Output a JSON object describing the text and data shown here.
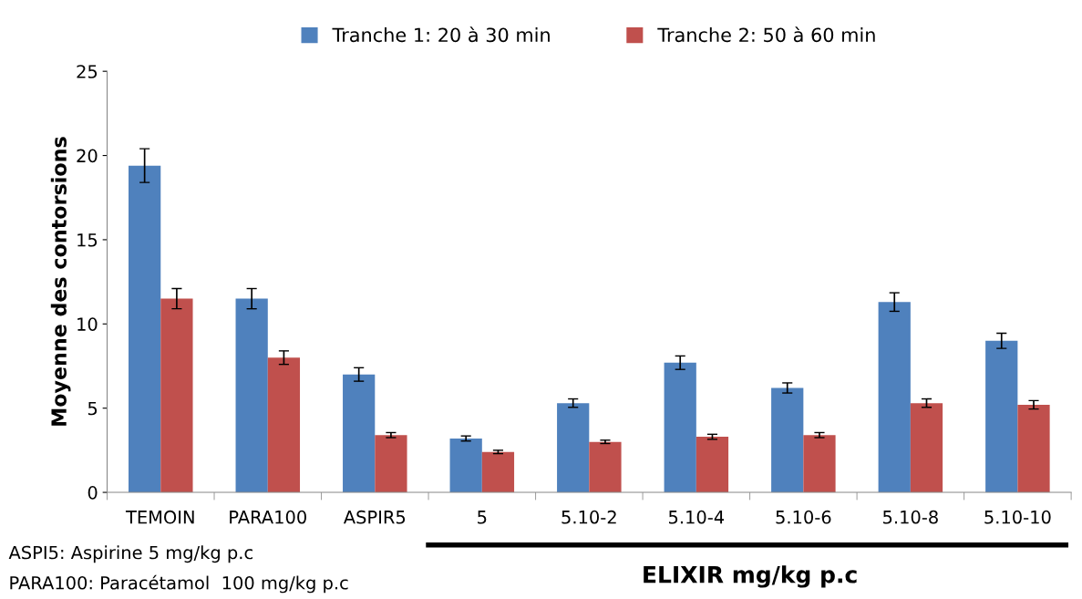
{
  "chart_data": {
    "type": "bar",
    "ylabel": "Moyenne des contorsions",
    "categories": [
      "TEMOIN",
      "PARA100",
      "ASPIR5",
      "5",
      "5.10-2",
      "5.10-4",
      "5.10-6",
      "5.10-8",
      "5.10-10"
    ],
    "series": [
      {
        "name": "Tranche 1: 20 à 30 min",
        "color": "#4f81bd",
        "values": [
          19.4,
          11.5,
          7.0,
          3.2,
          5.3,
          7.7,
          6.2,
          11.3,
          9.0
        ],
        "errors": [
          1.0,
          0.6,
          0.4,
          0.15,
          0.25,
          0.4,
          0.3,
          0.55,
          0.45
        ]
      },
      {
        "name": "Tranche 2: 50 à 60 min",
        "color": "#c0504d",
        "values": [
          11.5,
          8.0,
          3.4,
          2.4,
          3.0,
          3.3,
          3.4,
          5.3,
          5.2
        ],
        "errors": [
          0.6,
          0.4,
          0.15,
          0.1,
          0.1,
          0.15,
          0.15,
          0.25,
          0.25
        ]
      }
    ],
    "ylim": [
      0,
      25
    ],
    "yticks": [
      0,
      5,
      10,
      15,
      20,
      25
    ],
    "grid": false,
    "legend": "top",
    "annotations": [
      "ASPI5: Aspirine 5 mg/kg p.c",
      "PARA100: Paracétamol  100 mg/kg p.c",
      "ELIXIR mg/kg p.c"
    ]
  }
}
